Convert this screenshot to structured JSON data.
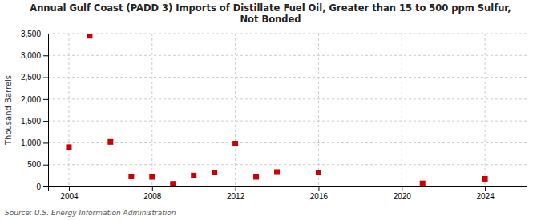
{
  "chart_data": {
    "type": "scatter",
    "title": "Annual Gulf Coast (PADD 3) Imports of Distillate Fuel Oil, Greater than 15 to 500 ppm Sulfur,\nNot Bonded",
    "ylabel": "Thousand Barrels",
    "annotations": [
      "Source: U.S. Energy Information Administration"
    ],
    "x": [
      2004,
      2005,
      2006,
      2007,
      2008,
      2009,
      2010,
      2011,
      2012,
      2013,
      2014,
      2016,
      2021,
      2024
    ],
    "values": [
      900,
      3450,
      1020,
      230,
      220,
      60,
      250,
      320,
      980,
      220,
      330,
      320,
      70,
      175
    ],
    "color": "#cc0000",
    "marker": "square",
    "xlim": [
      2003.0,
      2026.0
    ],
    "ylim": [
      0,
      3500
    ],
    "xticks": [
      2004,
      2008,
      2012,
      2016,
      2020,
      2024
    ],
    "yticks": [
      0,
      500,
      {
        "value": 1000,
        "label": "1,000"
      },
      {
        "value": 1500,
        "label": "1,500"
      },
      {
        "value": 2000,
        "label": "2,000"
      },
      {
        "value": 2500,
        "label": "2,500"
      },
      {
        "value": 3000,
        "label": "3,000"
      },
      {
        "value": 3500,
        "label": "3,500"
      }
    ],
    "grid": true
  }
}
